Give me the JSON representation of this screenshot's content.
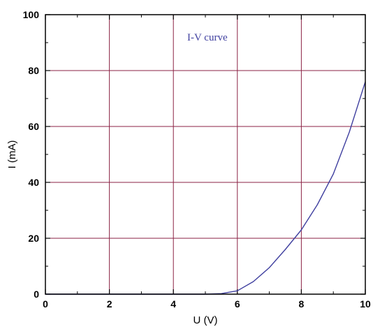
{
  "chart_data": {
    "type": "line",
    "title": "",
    "xlabel": "U (V)",
    "ylabel": "I (mA)",
    "xlim": [
      0,
      10
    ],
    "ylim": [
      0,
      100
    ],
    "x_ticks": [
      "0",
      "2",
      "4",
      "6",
      "8",
      "10"
    ],
    "y_ticks": [
      "0",
      "20",
      "40",
      "60",
      "80",
      "100"
    ],
    "grid": true,
    "legend_placement": "top-center",
    "colors": {
      "grid": "#8b2244",
      "series": "#3f3f9f",
      "axis": "#000000"
    },
    "series": [
      {
        "name": "I-V curve",
        "x": [
          0,
          1,
          2,
          3,
          4,
          5,
          5.5,
          6,
          6.5,
          7,
          7.5,
          8,
          8.5,
          9,
          9.5,
          10
        ],
        "y": [
          0,
          0,
          0,
          0,
          0,
          0,
          0.2,
          1.2,
          4.5,
          9.5,
          16,
          23,
          32,
          43,
          58,
          76
        ]
      }
    ]
  }
}
